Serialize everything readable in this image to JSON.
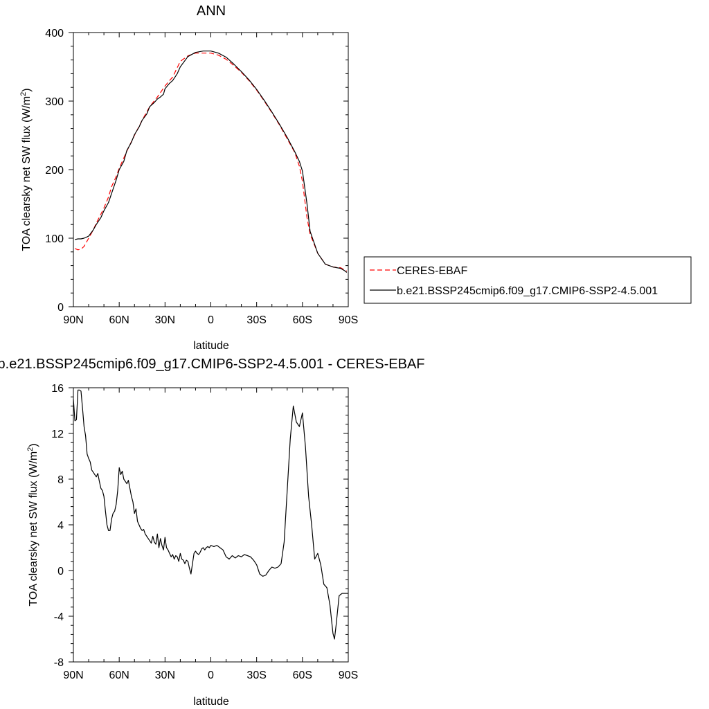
{
  "chart_data": [
    {
      "type": "line",
      "title": "ANN",
      "xlabel": "latitude",
      "ylabel": "TOA clearsky net SW flux (W/m",
      "ylabel_sup": "2",
      "ylabel_close": ")",
      "xlim": [
        90,
        -90
      ],
      "ylim": [
        0,
        400
      ],
      "x_ticks": [
        90,
        60,
        30,
        0,
        -30,
        -60,
        -90
      ],
      "x_tick_labels": [
        "90N",
        "60N",
        "30N",
        "0",
        "30S",
        "60S",
        "90S"
      ],
      "y_ticks": [
        0,
        100,
        200,
        300,
        400
      ],
      "y_tick_labels": [
        "0",
        "100",
        "200",
        "300",
        "400"
      ],
      "legend_position": "right",
      "series": [
        {
          "name": "CERES-EBAF",
          "color": "#ff0000",
          "dash": "dashed",
          "x": [
            89,
            87,
            85,
            83,
            80,
            77,
            75,
            72,
            70,
            67,
            65,
            62,
            60,
            55,
            50,
            45,
            40,
            35,
            30,
            27,
            25,
            20,
            15,
            10,
            5,
            0,
            -5,
            -10,
            -15,
            -20,
            -25,
            -30,
            -35,
            -40,
            -45,
            -50,
            -55,
            -58,
            -60,
            -63,
            -65,
            -70,
            -75,
            -80,
            -85,
            -88,
            -89
          ],
          "y": [
            85,
            83,
            84,
            88,
            100,
            112,
            122,
            135,
            144,
            160,
            175,
            190,
            202,
            227,
            250,
            272,
            292,
            306,
            322,
            330,
            335,
            358,
            366,
            370,
            370,
            370,
            367,
            361,
            352,
            342,
            330,
            316,
            300,
            283,
            265,
            245,
            225,
            205,
            183,
            130,
            106,
            78,
            62,
            58,
            57,
            53,
            52
          ]
        },
        {
          "name": "b.e21.BSSP245cmip6.f09_g17.CMIP6-SSP2-4.5.001",
          "color": "#000000",
          "dash": "solid",
          "x": [
            89,
            87,
            85,
            83,
            80,
            77,
            75,
            72,
            70,
            67,
            65,
            62,
            60,
            57,
            55,
            52,
            50,
            47,
            45,
            42,
            40,
            37,
            35,
            33,
            31,
            30,
            27,
            25,
            22,
            20,
            15,
            10,
            5,
            0,
            -5,
            -10,
            -15,
            -20,
            -25,
            -30,
            -35,
            -40,
            -45,
            -50,
            -55,
            -58,
            -60,
            -63,
            -65,
            -70,
            -75,
            -80,
            -85,
            -88,
            -89
          ],
          "y": [
            98,
            99,
            99,
            100,
            103,
            112,
            120,
            130,
            140,
            152,
            165,
            185,
            200,
            212,
            228,
            240,
            251,
            262,
            272,
            281,
            292,
            298,
            303,
            306,
            310,
            318,
            326,
            330,
            340,
            350,
            365,
            371,
            373,
            373,
            370,
            364,
            354,
            343,
            331,
            317,
            301,
            284,
            266,
            247,
            226,
            212,
            198,
            150,
            110,
            78,
            62,
            58,
            56,
            52,
            50
          ]
        }
      ]
    },
    {
      "type": "line",
      "title": "b.e21.BSSP245cmip6.f09_g17.CMIP6-SSP2-4.5.001 - CERES-EBAF",
      "xlabel": "latitude",
      "ylabel": "TOA clearsky net SW flux (W/m",
      "ylabel_sup": "2",
      "ylabel_close": ")",
      "xlim": [
        90,
        -90
      ],
      "ylim": [
        -8,
        16
      ],
      "x_ticks": [
        90,
        60,
        30,
        0,
        -30,
        -60,
        -90
      ],
      "x_tick_labels": [
        "90N",
        "60N",
        "30N",
        "0",
        "30S",
        "60S",
        "90S"
      ],
      "y_ticks": [
        -8,
        -4,
        0,
        4,
        8,
        12,
        16
      ],
      "y_tick_labels": [
        "-8",
        "-4",
        "0",
        "4",
        "8",
        "12",
        "16"
      ],
      "series": [
        {
          "color": "#000000",
          "x": [
            90,
            89,
            88,
            87,
            86,
            85,
            84,
            83,
            82,
            81,
            80,
            79,
            78,
            77,
            76,
            75,
            74,
            73,
            72,
            71,
            70,
            69,
            68,
            67,
            66,
            65,
            64,
            63,
            62,
            61,
            60,
            59,
            58,
            57,
            56,
            55,
            54,
            53,
            52,
            51,
            50,
            49,
            48,
            47,
            46,
            45,
            44,
            43,
            42,
            41,
            40,
            39,
            38,
            37,
            36,
            35,
            34,
            33,
            32,
            31,
            30,
            29,
            28,
            27,
            26,
            25,
            24,
            23,
            22,
            21,
            20,
            19,
            18,
            17,
            16,
            15,
            14,
            13,
            12,
            11,
            10,
            9,
            8,
            7,
            6,
            5,
            4,
            3,
            2,
            1,
            0,
            -2,
            -4,
            -6,
            -8,
            -10,
            -12,
            -14,
            -16,
            -18,
            -20,
            -22,
            -24,
            -26,
            -28,
            -30,
            -32,
            -34,
            -36,
            -38,
            -40,
            -42,
            -44,
            -46,
            -48,
            -50,
            -52,
            -54,
            -56,
            -58,
            -60,
            -62,
            -64,
            -66,
            -68,
            -70,
            -72,
            -74,
            -76,
            -78,
            -80,
            -81,
            -82,
            -83,
            -84,
            -85,
            -86,
            -87,
            -88,
            -89,
            -90
          ],
          "y": [
            15.0,
            13.1,
            13.2,
            15.8,
            15.8,
            15.7,
            14.2,
            12.6,
            11.8,
            10.2,
            9.8,
            9.5,
            8.8,
            8.6,
            8.4,
            8.2,
            8.5,
            7.8,
            7.2,
            7.0,
            6.5,
            5.2,
            4.0,
            3.5,
            3.5,
            4.5,
            5.0,
            5.2,
            5.8,
            7.0,
            9.0,
            8.4,
            8.7,
            8.0,
            7.8,
            7.6,
            7.9,
            7.2,
            6.5,
            6.0,
            5.0,
            5.4,
            4.3,
            4.0,
            3.7,
            3.5,
            3.6,
            3.2,
            3.0,
            2.8,
            2.6,
            2.4,
            3.0,
            2.5,
            2.3,
            3.2,
            2.0,
            2.8,
            2.2,
            1.8,
            2.9,
            2.0,
            1.8,
            1.5,
            1.2,
            1.4,
            1.0,
            1.3,
            1.2,
            0.8,
            1.5,
            1.0,
            0.9,
            0.6,
            0.9,
            0.8,
            0.2,
            -0.3,
            0.6,
            1.5,
            1.7,
            1.5,
            1.4,
            1.6,
            1.9,
            2.0,
            1.8,
            2.0,
            2.1,
            2.0,
            2.2,
            2.1,
            2.2,
            2.0,
            1.8,
            1.2,
            1.0,
            1.3,
            1.1,
            1.3,
            1.2,
            1.4,
            1.3,
            1.2,
            0.9,
            0.5,
            -0.3,
            -0.5,
            -0.4,
            0.0,
            0.3,
            0.2,
            0.3,
            0.6,
            2.5,
            7.0,
            11.5,
            14.4,
            13.0,
            12.6,
            13.8,
            10.8,
            6.5,
            4.0,
            1.0,
            1.5,
            0.5,
            -1.2,
            -1.5,
            -3.0,
            -5.5,
            -6.0,
            -4.8,
            -3.5,
            -2.2,
            -2.1,
            -2.0,
            -2.0,
            -2.0,
            -2.0,
            -2.0
          ]
        }
      ]
    }
  ]
}
